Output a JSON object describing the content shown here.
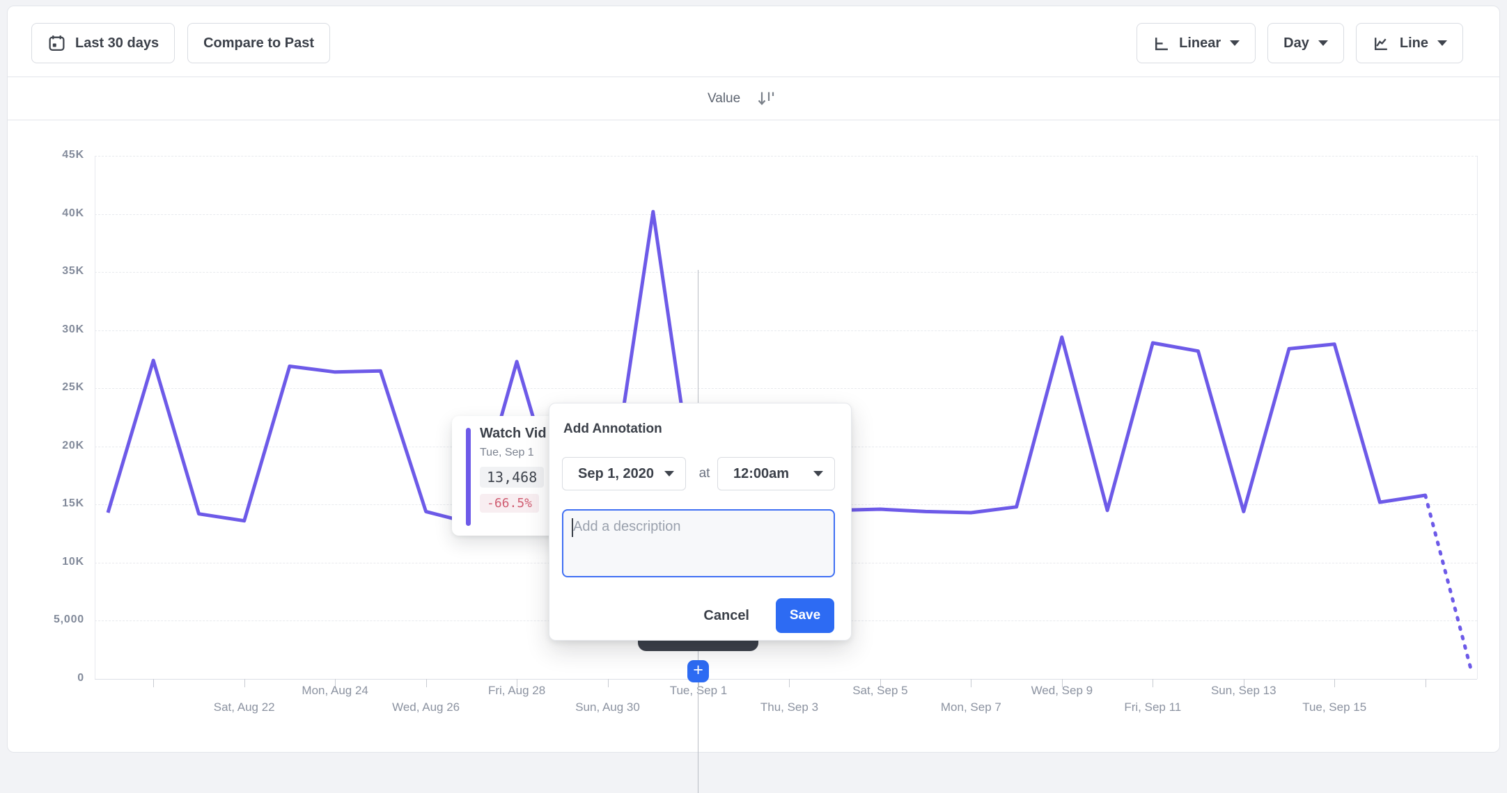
{
  "toolbar": {
    "date_range_label": "Last 30 days",
    "compare_label": "Compare to Past",
    "scale_label": "Linear",
    "granularity_label": "Day",
    "chart_type_label": "Line"
  },
  "header": {
    "value_label": "Value"
  },
  "chart_data": {
    "type": "line",
    "series_name": "Watch Vid",
    "line_color": "#6d5ae8",
    "ylim": [
      0,
      45000
    ],
    "grid": "horizontal-dashed",
    "y_tick_labels": [
      "45K",
      "40K",
      "35K",
      "30K",
      "25K",
      "20K",
      "15K",
      "10K",
      "5,000",
      "0"
    ],
    "dates": [
      "Aug 19",
      "Aug 20",
      "Aug 21",
      "Aug 22",
      "Aug 23",
      "Aug 24",
      "Aug 25",
      "Aug 26",
      "Aug 27",
      "Aug 28",
      "Aug 29",
      "Aug 30",
      "Aug 31",
      "Sep 1",
      "Sep 2",
      "Sep 3",
      "Sep 4",
      "Sep 5",
      "Sep 6",
      "Sep 7",
      "Sep 8",
      "Sep 9",
      "Sep 10",
      "Sep 11",
      "Sep 12",
      "Sep 13",
      "Sep 14",
      "Sep 15",
      "Sep 16",
      "Sep 17",
      "Sep 18"
    ],
    "values": [
      14300,
      27400,
      14200,
      13600,
      26900,
      26400,
      26500,
      14400,
      13400,
      27300,
      14000,
      14200,
      40200,
      13468,
      13900,
      14200,
      14500,
      14600,
      14400,
      14300,
      14800,
      29400,
      14500,
      28900,
      28200,
      14400,
      28400,
      28800,
      15200,
      15800,
      900
    ],
    "last_segment_dotted": true,
    "x_ticks": [
      {
        "i": 1,
        "label": null,
        "row": null
      },
      {
        "i": 3,
        "label": "Sat, Aug 22",
        "row": "low"
      },
      {
        "i": 5,
        "label": "Mon, Aug 24",
        "row": "high"
      },
      {
        "i": 7,
        "label": "Wed, Aug 26",
        "row": "low"
      },
      {
        "i": 9,
        "label": "Fri, Aug 28",
        "row": "high"
      },
      {
        "i": 11,
        "label": "Sun, Aug 30",
        "row": "low"
      },
      {
        "i": 13,
        "label": "Tue, Sep 1",
        "row": "high"
      },
      {
        "i": 15,
        "label": "Thu, Sep 3",
        "row": "low"
      },
      {
        "i": 17,
        "label": "Sat, Sep 5",
        "row": "high"
      },
      {
        "i": 19,
        "label": "Mon, Sep 7",
        "row": "low"
      },
      {
        "i": 21,
        "label": "Wed, Sep 9",
        "row": "high"
      },
      {
        "i": 23,
        "label": "Fri, Sep 11",
        "row": "low"
      },
      {
        "i": 25,
        "label": "Sun, Sep 13",
        "row": "high"
      },
      {
        "i": 27,
        "label": "Tue, Sep 15",
        "row": "low"
      },
      {
        "i": 29,
        "label": null,
        "row": null
      }
    ]
  },
  "tooltip": {
    "title": "Watch Vid",
    "date": "Tue, Sep 1",
    "value": "13,468",
    "delta": "-66.5%"
  },
  "annotation_modal": {
    "title": "Add Annotation",
    "date_value": "Sep 1, 2020",
    "at_label": "at",
    "time_value": "12:00am",
    "description_placeholder": "Add a description",
    "cancel_label": "Cancel",
    "save_label": "Save"
  },
  "add_annotation_button": "+",
  "colors": {
    "line_purple": "#6d5ae8",
    "accent_blue": "#2d6bf3",
    "negative_red": "#d05d72"
  }
}
